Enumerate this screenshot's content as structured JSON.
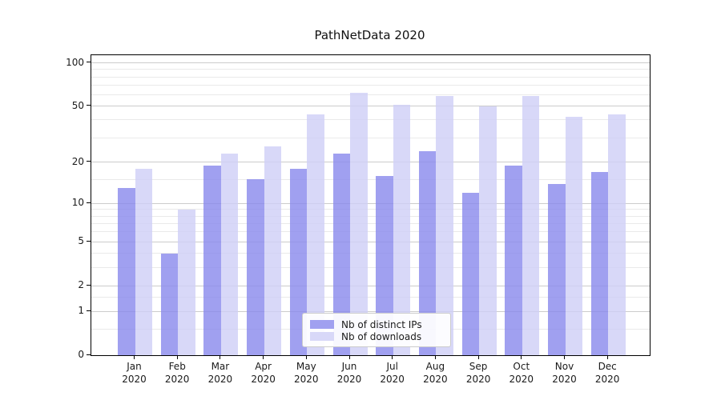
{
  "chart_data": {
    "type": "bar",
    "title": "PathNetData 2020",
    "categories": [
      "Jan 2020",
      "Feb 2020",
      "Mar 2020",
      "Apr 2020",
      "May 2020",
      "Jun 2020",
      "Jul 2020",
      "Aug 2020",
      "Sep 2020",
      "Oct 2020",
      "Nov 2020",
      "Dec 2020"
    ],
    "series": [
      {
        "name": "Nb of distinct IPs",
        "color": "#a0a0f0",
        "values": [
          13,
          4,
          19,
          15,
          18,
          23,
          16,
          24,
          12,
          19,
          14,
          17
        ]
      },
      {
        "name": "Nb of downloads",
        "color": "#d8d8f8",
        "values": [
          18,
          9,
          23,
          26,
          44,
          62,
          51,
          59,
          50,
          59,
          42,
          44
        ]
      }
    ],
    "xlabel": "",
    "ylabel": "",
    "yscale": "log1p",
    "yticks": [
      0,
      1,
      2,
      5,
      10,
      20,
      50,
      100
    ],
    "yticks_minor": [
      0.5,
      1.5,
      3,
      4,
      6,
      7,
      8,
      9,
      15,
      30,
      40,
      60,
      70,
      80,
      90
    ],
    "ylim": [
      0,
      113
    ],
    "grid": true,
    "legend_position": "lower center"
  }
}
